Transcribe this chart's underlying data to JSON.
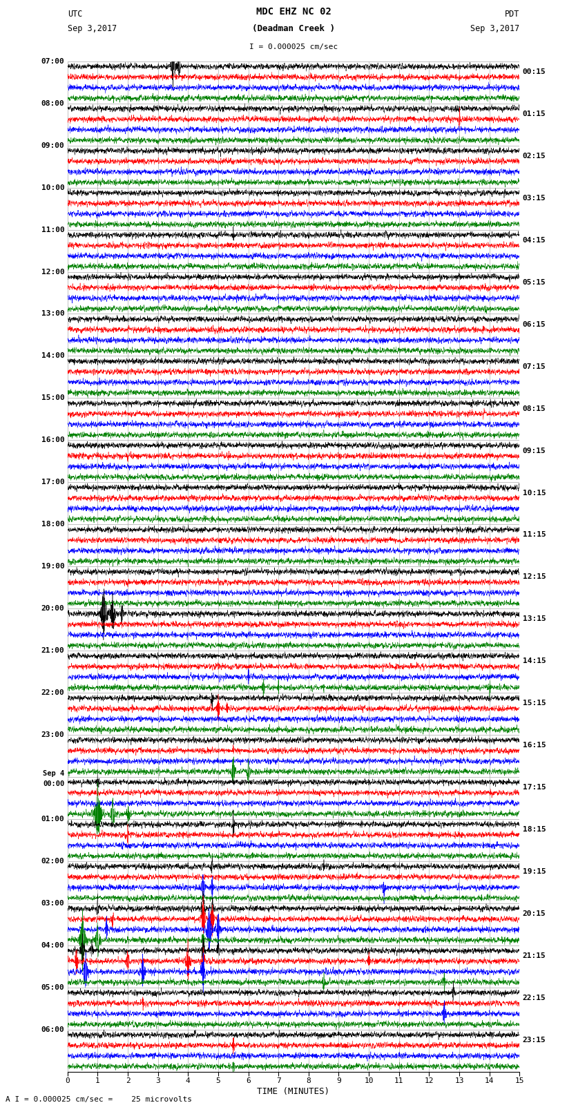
{
  "title_line1": "MDC EHZ NC 02",
  "title_line2": "(Deadman Creek )",
  "scale_label": "I = 0.000025 cm/sec",
  "footer_label": "A I = 0.000025 cm/sec =    25 microvolts",
  "utc_label": "UTC",
  "utc_date": "Sep 3,2017",
  "pdt_label": "PDT",
  "pdt_date": "Sep 3,2017",
  "xlabel": "TIME (MINUTES)",
  "left_times": [
    "07:00",
    "08:00",
    "09:00",
    "10:00",
    "11:00",
    "12:00",
    "13:00",
    "14:00",
    "15:00",
    "16:00",
    "17:00",
    "18:00",
    "19:00",
    "20:00",
    "21:00",
    "22:00",
    "23:00",
    "Sep 4\n00:00",
    "01:00",
    "02:00",
    "03:00",
    "04:00",
    "05:00",
    "06:00"
  ],
  "right_times": [
    "00:15",
    "01:15",
    "02:15",
    "03:15",
    "04:15",
    "05:15",
    "06:15",
    "07:15",
    "08:15",
    "09:15",
    "10:15",
    "11:15",
    "12:15",
    "13:15",
    "14:15",
    "15:15",
    "16:15",
    "17:15",
    "18:15",
    "19:15",
    "20:15",
    "21:15",
    "22:15",
    "23:15"
  ],
  "n_rows": 24,
  "traces_per_row": 4,
  "colors": [
    "black",
    "red",
    "blue",
    "green"
  ],
  "background": "white",
  "n_points": 3000,
  "xlim": [
    0,
    15
  ],
  "xticks": [
    0,
    1,
    2,
    3,
    4,
    5,
    6,
    7,
    8,
    9,
    10,
    11,
    12,
    13,
    14,
    15
  ],
  "fig_width": 8.5,
  "fig_height": 16.13,
  "dpi": 100,
  "base_noise_amp": 0.04,
  "vline_color": "#888888",
  "hline_color": "#aaaaaa"
}
